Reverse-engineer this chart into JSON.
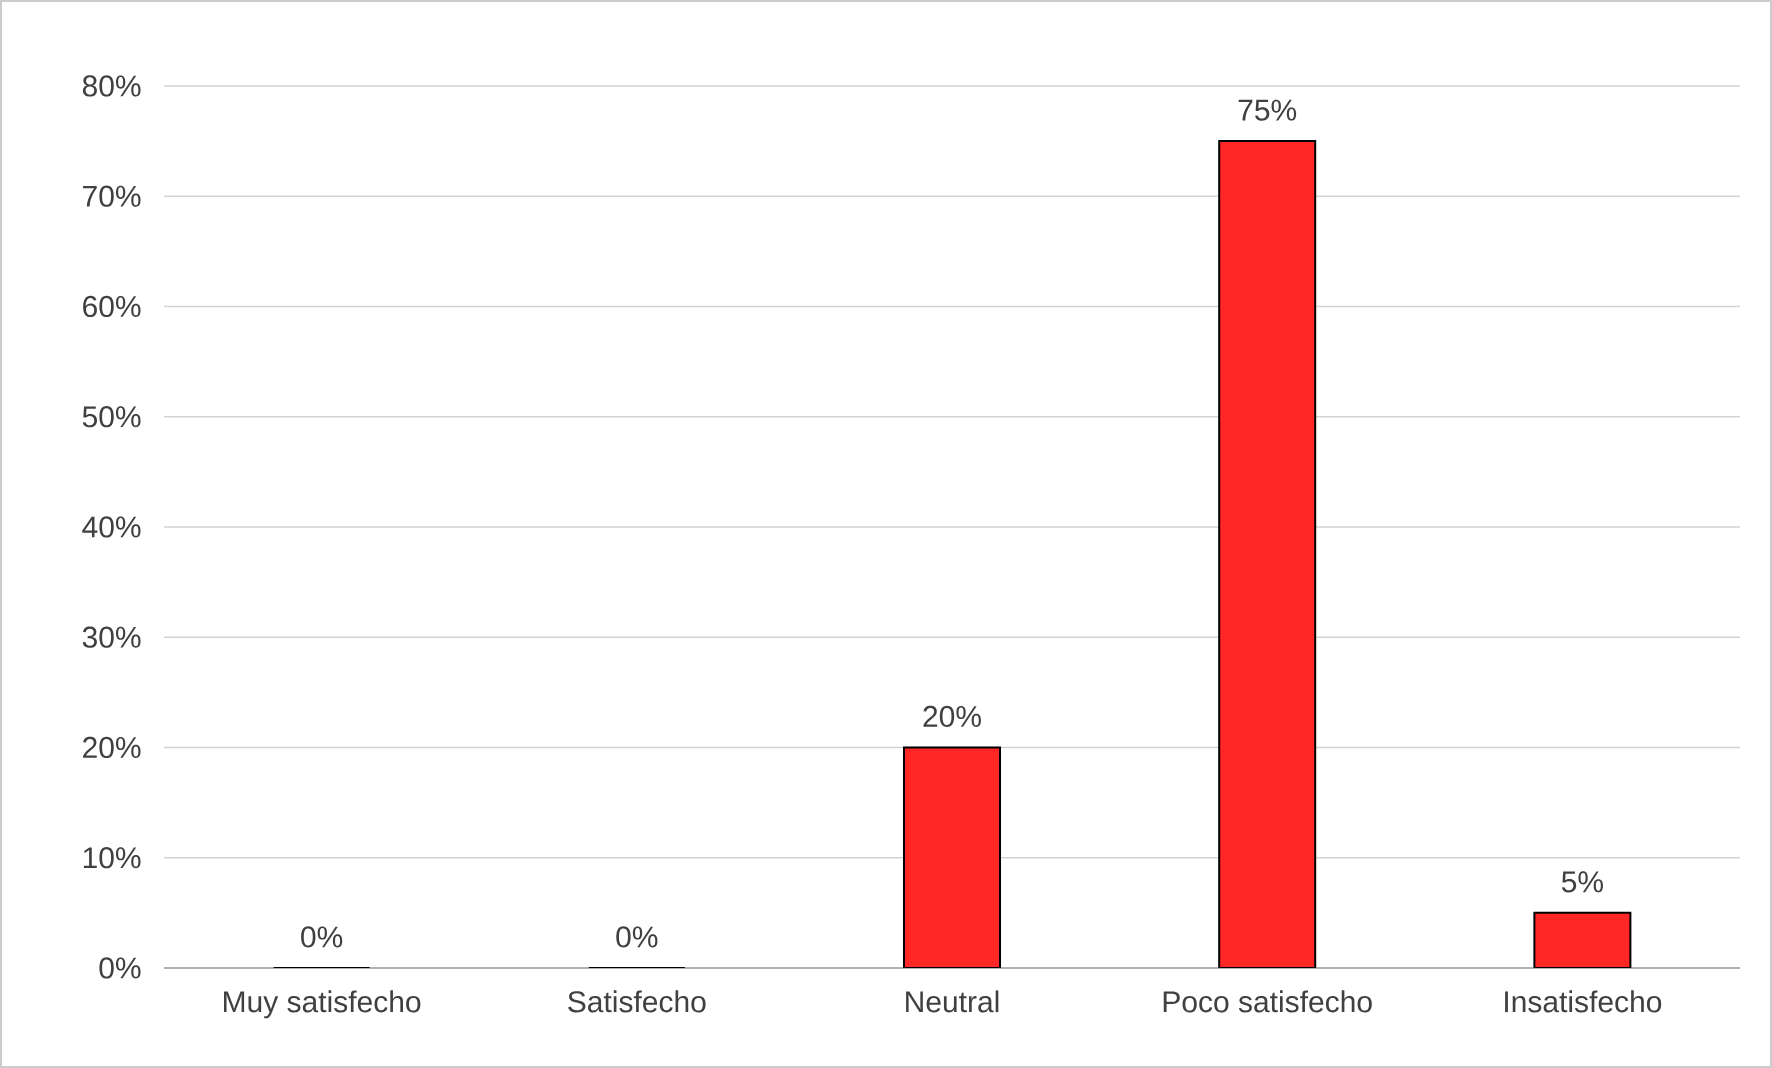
{
  "chart_data": {
    "type": "bar",
    "categories": [
      "Muy satisfecho",
      "Satisfecho",
      "Neutral",
      "Poco satisfecho",
      "Insatisfecho"
    ],
    "values": [
      0,
      0,
      20,
      75,
      5
    ],
    "value_labels": [
      "0%",
      "0%",
      "20%",
      "75%",
      "5%"
    ],
    "color": "#ff2626",
    "ylim": [
      0,
      80
    ],
    "yticks": [
      {
        "value": 0,
        "label": "0%"
      },
      {
        "value": 10,
        "label": "10%"
      },
      {
        "value": 20,
        "label": "20%"
      },
      {
        "value": 30,
        "label": "30%"
      },
      {
        "value": 40,
        "label": "40%"
      },
      {
        "value": 50,
        "label": "50%"
      },
      {
        "value": 60,
        "label": "60%"
      },
      {
        "value": 70,
        "label": "70%"
      },
      {
        "value": 80,
        "label": "80%"
      }
    ],
    "grid": "y"
  }
}
